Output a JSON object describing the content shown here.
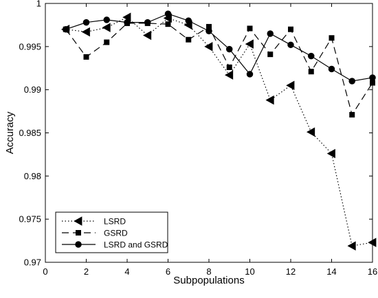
{
  "chart_data": {
    "type": "line",
    "xlabel": "Subpopulations",
    "ylabel": "Accuracy",
    "xlim": [
      0,
      16
    ],
    "ylim": [
      0.97,
      1.0
    ],
    "x_ticks": [
      0,
      2,
      4,
      6,
      8,
      10,
      12,
      14,
      16
    ],
    "y_ticks": [
      0.97,
      0.975,
      0.98,
      0.985,
      0.99,
      0.995,
      1
    ],
    "y_tick_labels": [
      "0.97",
      "0.975",
      "0.98",
      "0.985",
      "0.99",
      "0.995",
      "1"
    ],
    "grid": false,
    "legend_position": "bottom-left",
    "x": [
      1,
      2,
      3,
      4,
      5,
      6,
      7,
      8,
      9,
      10,
      11,
      12,
      13,
      14,
      15,
      16
    ],
    "series": [
      {
        "name": "LSRD",
        "line_style": "dotted",
        "marker": "triangle-left",
        "color": "#000000",
        "values": [
          0.997,
          0.9967,
          0.9972,
          0.9984,
          0.9963,
          0.9983,
          0.9975,
          0.995,
          0.9917,
          0.9953,
          0.9888,
          0.9905,
          0.9851,
          0.9826,
          0.9719,
          0.9723
        ]
      },
      {
        "name": "GSRD",
        "line_style": "dashed",
        "marker": "square",
        "color": "#000000",
        "values": [
          0.997,
          0.9938,
          0.9955,
          0.9977,
          0.9977,
          0.9976,
          0.9958,
          0.9973,
          0.9926,
          0.9971,
          0.9941,
          0.997,
          0.9921,
          0.996,
          0.9871,
          0.9908
        ]
      },
      {
        "name": "LSRD and GSRD",
        "line_style": "solid",
        "marker": "circle",
        "color": "#000000",
        "values": [
          0.997,
          0.9978,
          0.9981,
          0.9978,
          0.9978,
          0.9988,
          0.998,
          0.9968,
          0.9947,
          0.9918,
          0.9965,
          0.9952,
          0.9939,
          0.9924,
          0.991,
          0.9914
        ]
      }
    ]
  }
}
